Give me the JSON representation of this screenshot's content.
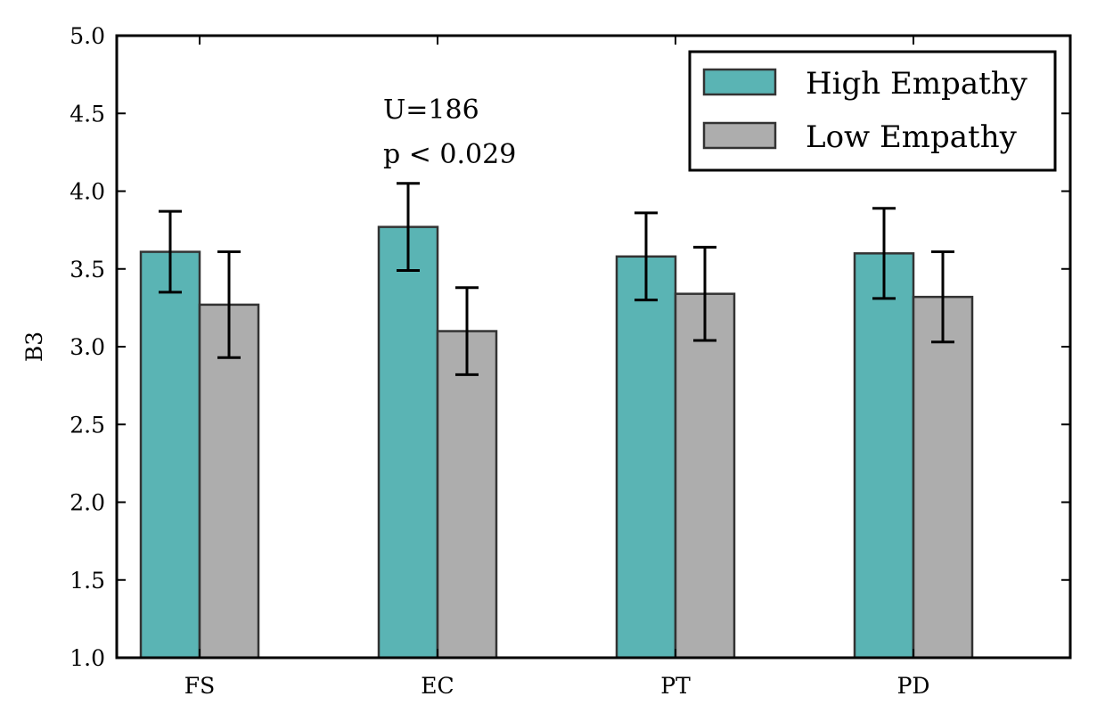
{
  "chart_data": {
    "type": "bar",
    "title": "",
    "xlabel": "",
    "ylabel": "B3",
    "ylim": [
      1.0,
      5.0
    ],
    "yticks": [
      "1.0",
      "1.5",
      "2.0",
      "2.5",
      "3.0",
      "3.5",
      "4.0",
      "4.5",
      "5.0"
    ],
    "categories": [
      "FS",
      "EC",
      "PT",
      "PD"
    ],
    "series": [
      {
        "name": "High Empathy",
        "color": "#5ab4b4",
        "values": [
          3.61,
          3.77,
          3.58,
          3.6
        ],
        "errors": [
          0.26,
          0.28,
          0.28,
          0.29
        ]
      },
      {
        "name": "Low Empathy",
        "color": "#adadad",
        "values": [
          3.27,
          3.1,
          3.34,
          3.32
        ],
        "errors": [
          0.34,
          0.28,
          0.3,
          0.29
        ]
      }
    ],
    "annotation": {
      "line1": "U=186",
      "line2": "p < 0.029",
      "category": "EC"
    },
    "legend_position": "top-right",
    "grid": false
  }
}
